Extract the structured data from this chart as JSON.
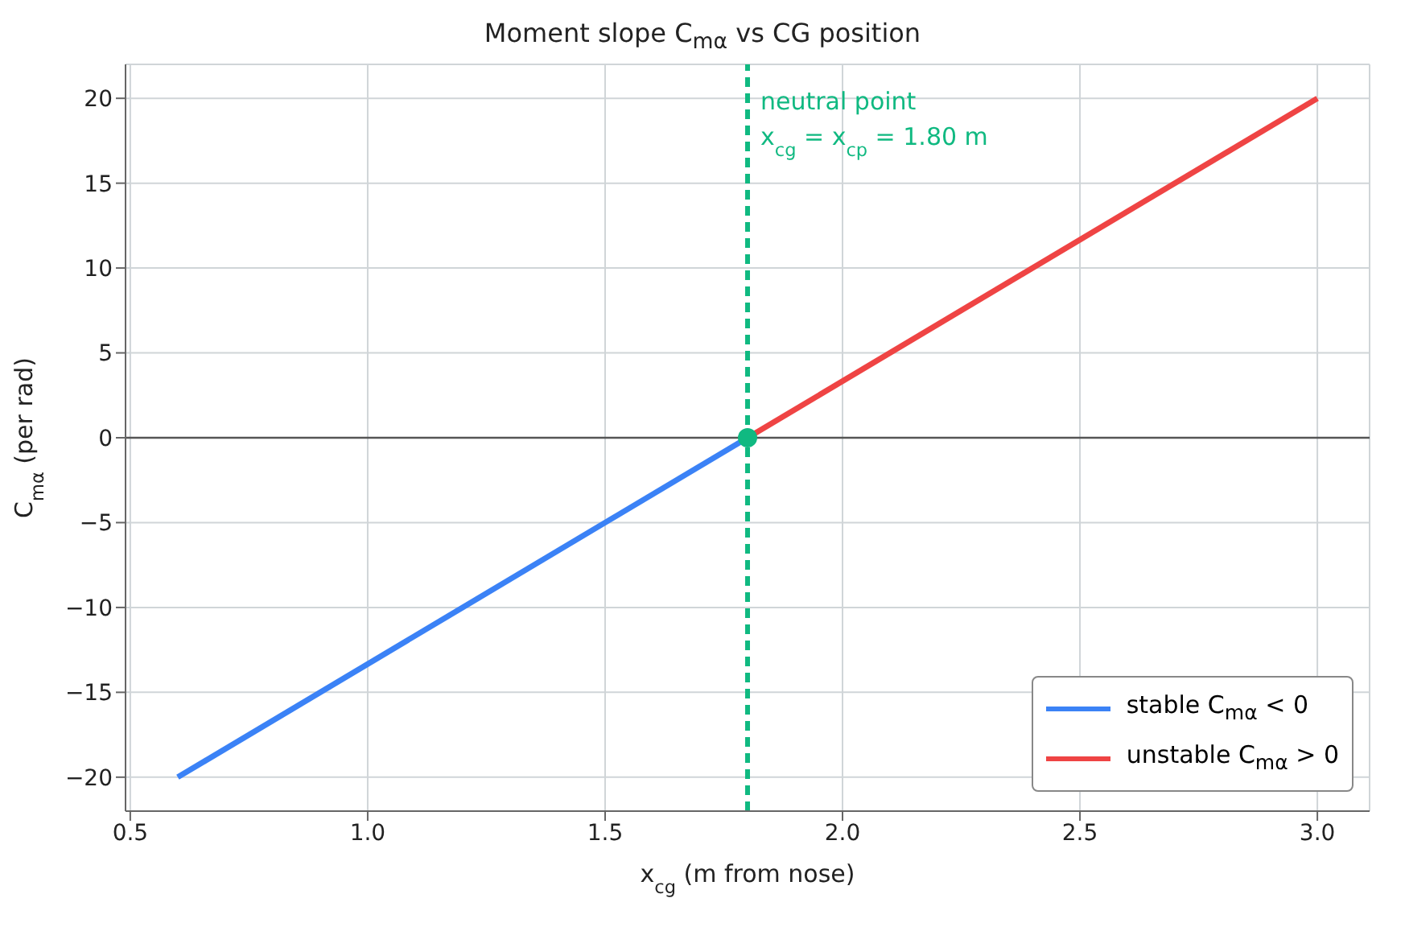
{
  "chart_data": {
    "type": "line",
    "title": "Moment slope C$_{mα}$ vs CG position",
    "xlabel": "x$_{cg}$  (m from nose)",
    "ylabel": "C$_{mα}$  (per rad)",
    "series": [
      {
        "name": "stable  C$_{mα}$ < 0",
        "color": "#3b82f6",
        "x": [
          0.6,
          1.8
        ],
        "values": [
          -20,
          0
        ]
      },
      {
        "name": "unstable  C$_{mα}$ > 0",
        "color": "#ef4444",
        "x": [
          1.8,
          3.0
        ],
        "values": [
          0,
          20
        ]
      },
      {
        "type": "scatter",
        "marker": "circle",
        "color": "#10b981",
        "x": [
          1.8
        ],
        "values": [
          0
        ]
      }
    ],
    "xlim": [
      0.49,
      3.11
    ],
    "xticks": [
      0.5,
      {
        "value": 1,
        "label": "1.0"
      },
      1.5,
      {
        "value": 2,
        "label": "2.0"
      },
      2.5,
      {
        "value": 3,
        "label": "3.0"
      }
    ],
    "ylim": [
      -22,
      22
    ],
    "yticks": [
      -20,
      -15,
      -10,
      -5,
      0,
      5,
      10,
      15,
      20
    ],
    "ref_lines": [
      {
        "axis": "x",
        "value": 1.8,
        "label": "neutral point\nx$_{cg}$ = x$_{cp}$ = 1.80 m",
        "color": "#10b981",
        "line_style": "dashed"
      },
      {
        "axis": "y",
        "value": 0,
        "color": "#555555",
        "line_style": "solid"
      }
    ],
    "grid": true,
    "legend": "bottom right",
    "marker": "none",
    "line_style": "solid"
  }
}
